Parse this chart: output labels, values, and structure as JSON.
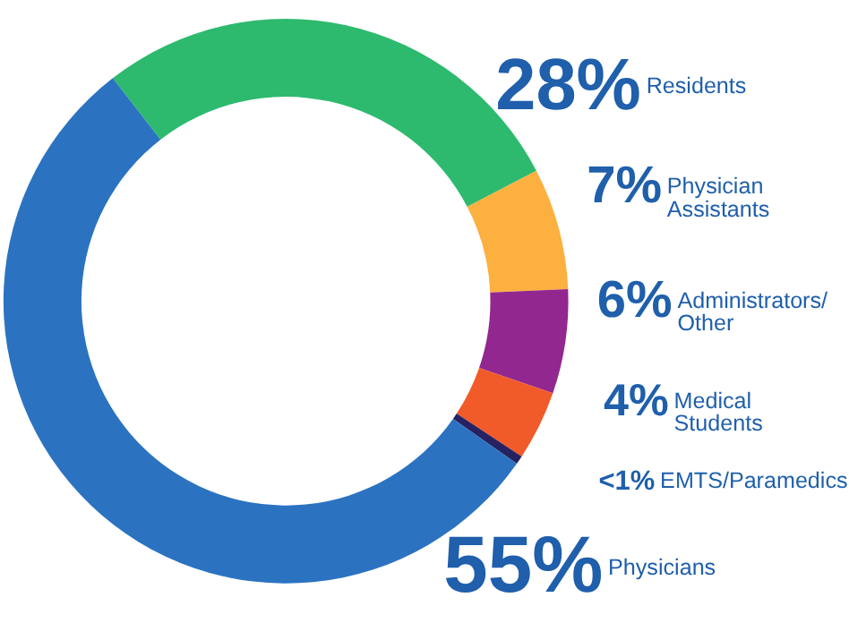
{
  "chart_data": {
    "type": "donut",
    "categories": [
      "Residents",
      "Physician Assistants",
      "Administrators/ Other",
      "Medical Students",
      "EMTS/Paramedics",
      "Physicians"
    ],
    "values": [
      28,
      7,
      6,
      4,
      0.5,
      55
    ],
    "value_labels": [
      "28%",
      "7%",
      "6%",
      "4%",
      "<1%",
      "55%"
    ],
    "colors": [
      "#2dba6e",
      "#fbb040",
      "#92278f",
      "#f15a29",
      "#262262",
      "#2b73c1"
    ],
    "data_labels": true
  }
}
